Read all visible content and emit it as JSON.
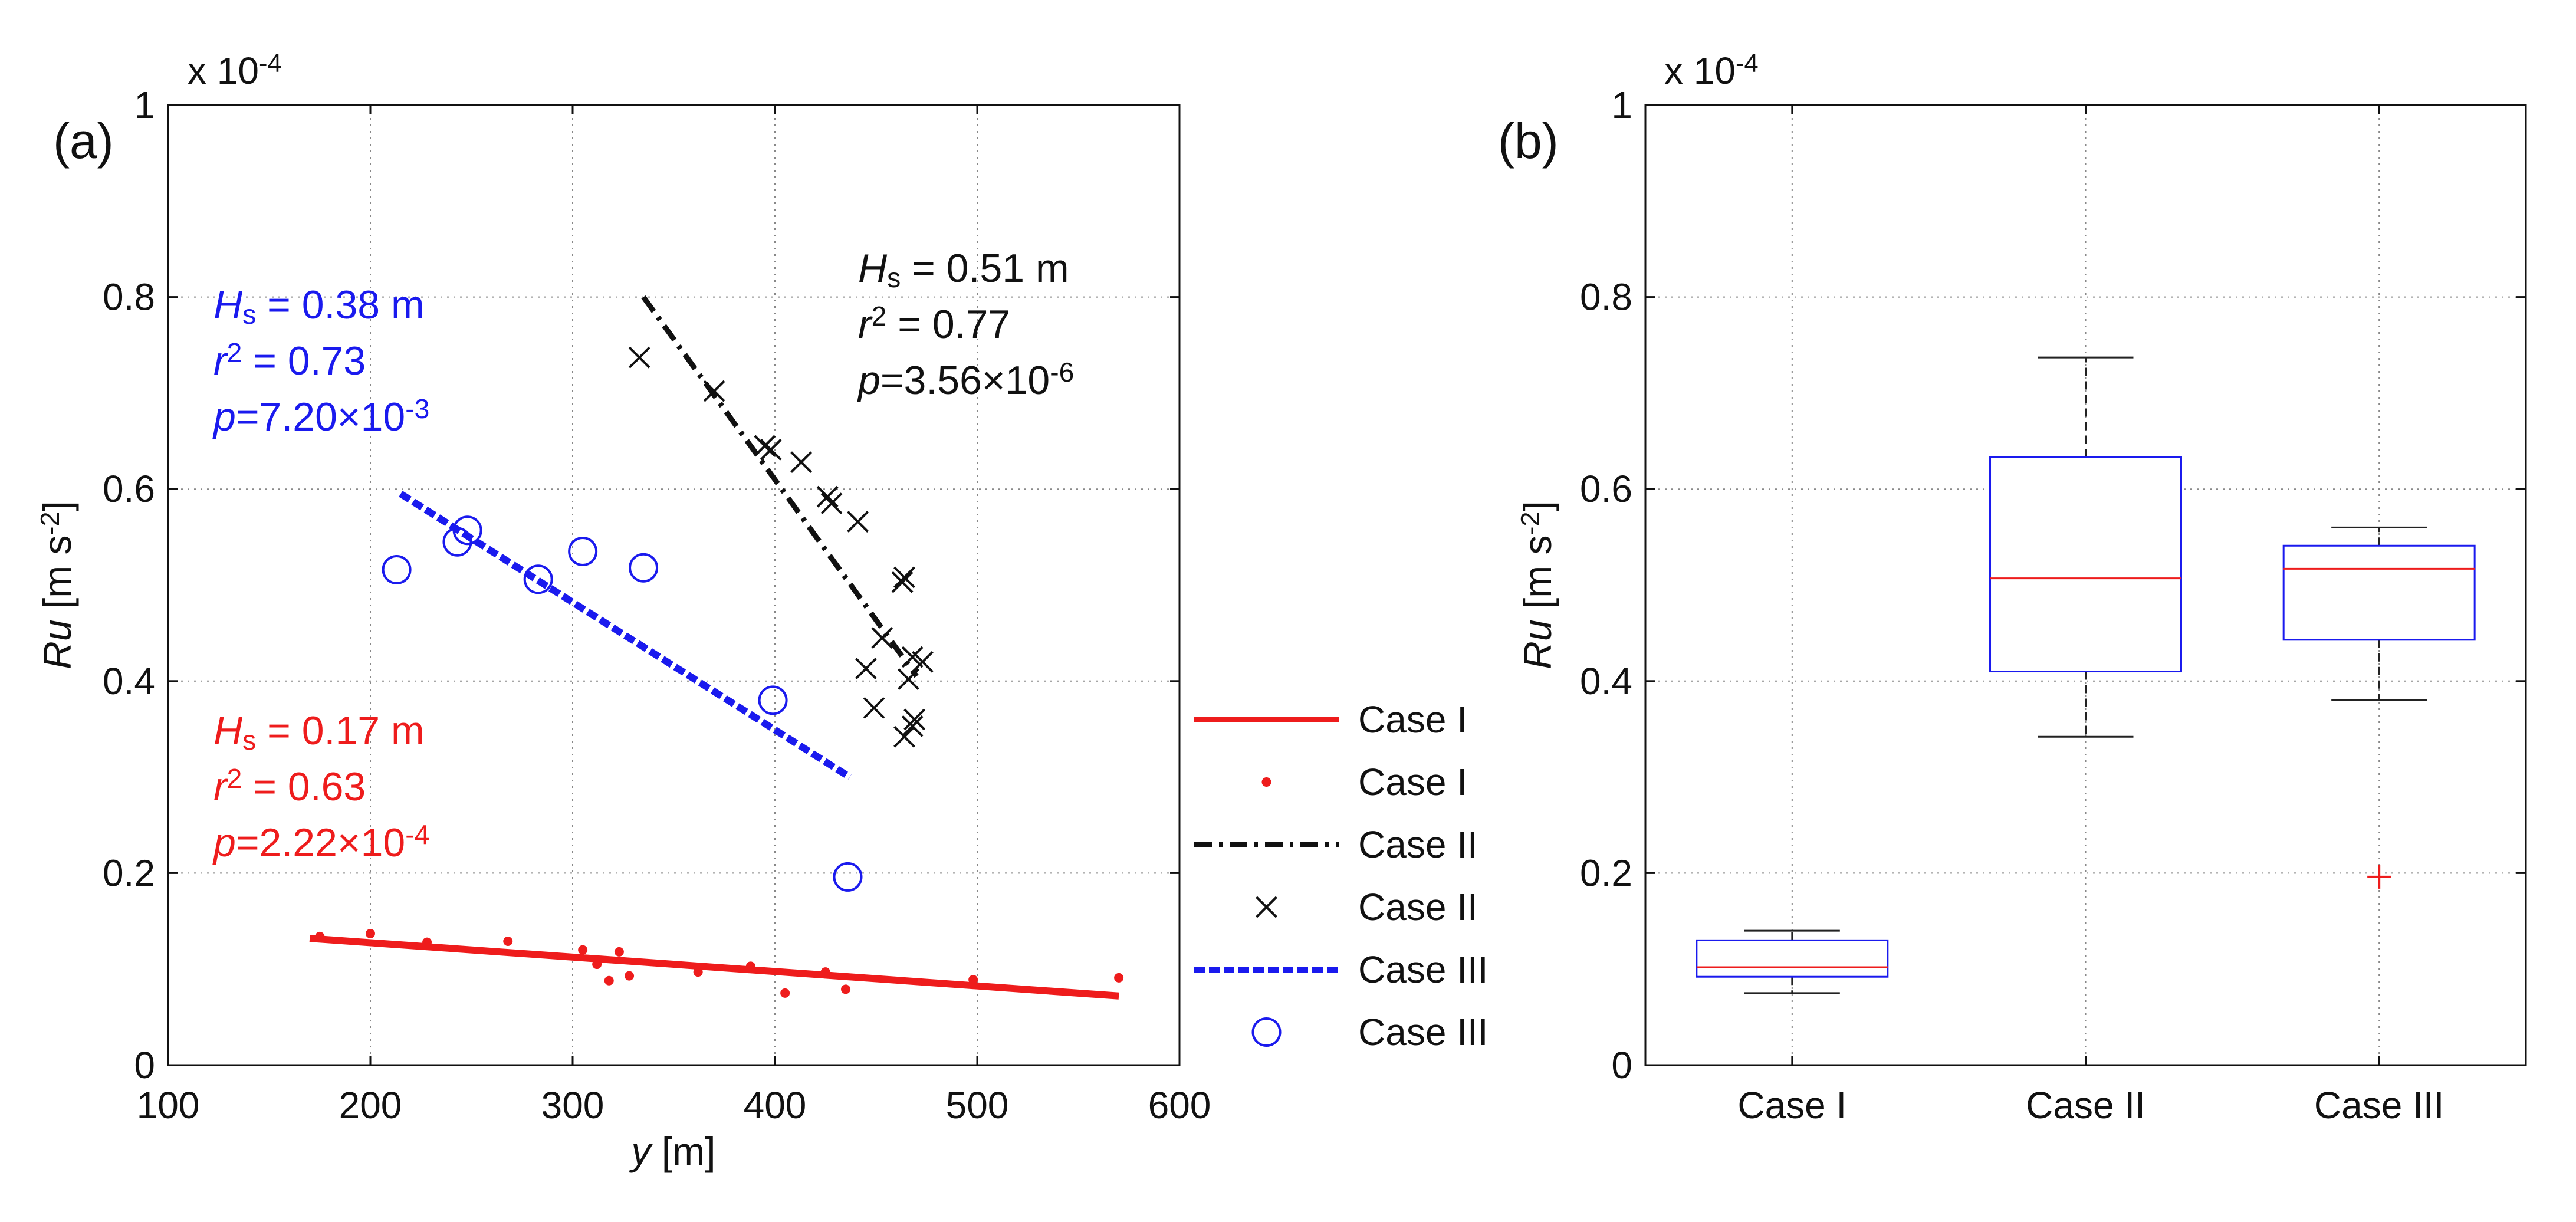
{
  "chart_data": [
    {
      "panel_label": "(a)",
      "type": "scatter",
      "xlabel": "y",
      "xlabel_unit": "[m]",
      "ylabel": "Ru",
      "ylabel_unit_main": "[m s",
      "ylabel_unit_exp": "-2",
      "ylabel_unit_close": "]",
      "scale_prefix": "x 10",
      "scale_exp": "-4",
      "xlim": [
        100,
        600
      ],
      "ylim": [
        0,
        1
      ],
      "x_ticks": [
        100,
        200,
        300,
        400,
        500,
        600
      ],
      "y_ticks": [
        0,
        0.2,
        0.4,
        0.6,
        0.8,
        1
      ],
      "x_tick_labels": [
        "100",
        "200",
        "300",
        "400",
        "500",
        "600"
      ],
      "y_tick_labels": [
        "0",
        "0.2",
        "0.4",
        "0.6",
        "0.8",
        "1"
      ],
      "grid": true,
      "colors": {
        "case1": "#ee1c1c",
        "case2": "#111111",
        "case3": "#1a1aee"
      },
      "series": [
        {
          "name": "Case I",
          "color": "#ee1c1c",
          "points": [
            [
              175,
              0.134
            ],
            [
              200,
              0.137
            ],
            [
              228,
              0.128
            ],
            [
              268,
              0.129
            ],
            [
              305,
              0.12
            ],
            [
              312,
              0.105
            ],
            [
              318,
              0.088
            ],
            [
              323,
              0.118
            ],
            [
              328,
              0.093
            ],
            [
              362,
              0.097
            ],
            [
              388,
              0.103
            ],
            [
              405,
              0.075
            ],
            [
              425,
              0.097
            ],
            [
              435,
              0.079
            ],
            [
              498,
              0.089
            ],
            [
              570,
              0.091
            ]
          ],
          "fit": [
            [
              170,
              0.132
            ],
            [
              570,
              0.072
            ]
          ]
        },
        {
          "name": "Case II",
          "color": "#111111",
          "points": [
            [
              333,
              0.737
            ],
            [
              370,
              0.702
            ],
            [
              395,
              0.645
            ],
            [
              398,
              0.641
            ],
            [
              413,
              0.628
            ],
            [
              426,
              0.592
            ],
            [
              428,
              0.585
            ],
            [
              441,
              0.566
            ],
            [
              445,
              0.413
            ],
            [
              449,
              0.372
            ],
            [
              453,
              0.445
            ],
            [
              463,
              0.503
            ],
            [
              464,
              0.508
            ],
            [
              464,
              0.342
            ],
            [
              466,
              0.402
            ],
            [
              468,
              0.425
            ],
            [
              468,
              0.353
            ],
            [
              469,
              0.36
            ],
            [
              473,
              0.42
            ]
          ],
          "fit": [
            [
              335,
              0.8
            ],
            [
              470,
              0.405
            ]
          ]
        },
        {
          "name": "Case III",
          "color": "#1a1aee",
          "points": [
            [
              213,
              0.516
            ],
            [
              243,
              0.545
            ],
            [
              248,
              0.557
            ],
            [
              283,
              0.506
            ],
            [
              305,
              0.535
            ],
            [
              335,
              0.518
            ],
            [
              399,
              0.38
            ],
            [
              436,
              0.196
            ]
          ],
          "fit": [
            [
              215,
              0.595
            ],
            [
              437,
              0.3
            ]
          ]
        }
      ],
      "annotations": [
        {
          "group": "case1",
          "Hs_label": "H",
          "Hs_sub": "s",
          "Hs_value": " = 0.17 m",
          "r2_label": "r",
          "r2_exp": "2",
          "r2_value": " = 0.63",
          "p_label": "p",
          "p_value": "=2.22×10",
          "p_exp": "-4"
        },
        {
          "group": "case3",
          "Hs_label": "H",
          "Hs_sub": "s",
          "Hs_value": " = 0.38 m",
          "r2_label": "r",
          "r2_exp": "2",
          "r2_value": " = 0.73",
          "p_label": "p",
          "p_value": "=7.20×10",
          "p_exp": "-3"
        },
        {
          "group": "case2",
          "Hs_label": "H",
          "Hs_sub": "s",
          "Hs_value": " = 0.51 m",
          "r2_label": "r",
          "r2_exp": "2",
          "r2_value": " = 0.77",
          "p_label": "p",
          "p_value": "=3.56×10",
          "p_exp": "-6"
        }
      ],
      "legend": {
        "placement": "right-outside",
        "entries": [
          {
            "label": "Case I",
            "style": "solid-line",
            "color": "#ee1c1c"
          },
          {
            "label": "Case I",
            "style": "dot",
            "color": "#ee1c1c"
          },
          {
            "label": "Case II",
            "style": "dash-dot-line",
            "color": "#111111"
          },
          {
            "label": "Case II",
            "style": "x-marker",
            "color": "#111111"
          },
          {
            "label": "Case III",
            "style": "dashed-line",
            "color": "#1a1aee"
          },
          {
            "label": "Case III",
            "style": "circle-marker",
            "color": "#1a1aee"
          }
        ]
      }
    },
    {
      "panel_label": "(b)",
      "type": "box",
      "ylabel": "Ru",
      "ylabel_unit_main": "[m s",
      "ylabel_unit_exp": "-2",
      "ylabel_unit_close": "]",
      "scale_prefix": "x 10",
      "scale_exp": "-4",
      "ylim": [
        0,
        1
      ],
      "y_ticks": [
        0,
        0.2,
        0.4,
        0.6,
        0.8,
        1
      ],
      "y_tick_labels": [
        "0",
        "0.2",
        "0.4",
        "0.6",
        "0.8",
        "1"
      ],
      "categories": [
        "Case I",
        "Case II",
        "Case III"
      ],
      "grid": true,
      "colors": {
        "box": "#1a1aee",
        "median": "#ee1c1c",
        "whisker": "#222222",
        "outlier": "#ee1c1c"
      },
      "boxes": [
        {
          "category": "Case I",
          "min": 0.075,
          "q1": 0.092,
          "median": 0.102,
          "q3": 0.13,
          "max": 0.14,
          "outliers": []
        },
        {
          "category": "Case II",
          "min": 0.342,
          "q1": 0.41,
          "median": 0.507,
          "q3": 0.633,
          "max": 0.737,
          "outliers": []
        },
        {
          "category": "Case III",
          "min": 0.38,
          "q1": 0.443,
          "median": 0.517,
          "q3": 0.541,
          "max": 0.56,
          "outliers": [
            0.196
          ]
        }
      ]
    }
  ]
}
